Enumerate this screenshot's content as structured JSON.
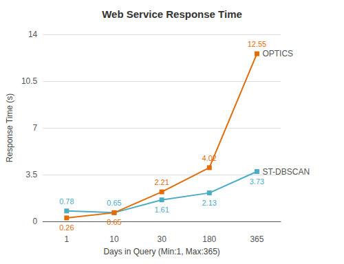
{
  "chart_data": {
    "type": "line",
    "title": "Web Service Response Time",
    "xlabel": "Days in Query (Min:1, Max:365)",
    "ylabel": "Response Time (s)",
    "categories": [
      "1",
      "10",
      "30",
      "180",
      "365"
    ],
    "series": [
      {
        "name": "ST-DBSCAN",
        "color": "#4bacc6",
        "values": [
          0.78,
          0.65,
          1.61,
          2.13,
          3.73
        ]
      },
      {
        "name": "OPTICS",
        "color": "#e36c09",
        "values": [
          0.26,
          0.65,
          2.21,
          4.02,
          12.55
        ]
      }
    ],
    "ylim": [
      0,
      14
    ],
    "yticks": [
      0,
      3.5,
      7,
      10.5,
      14
    ],
    "grid": true,
    "data_labels": true,
    "marker": "square"
  }
}
